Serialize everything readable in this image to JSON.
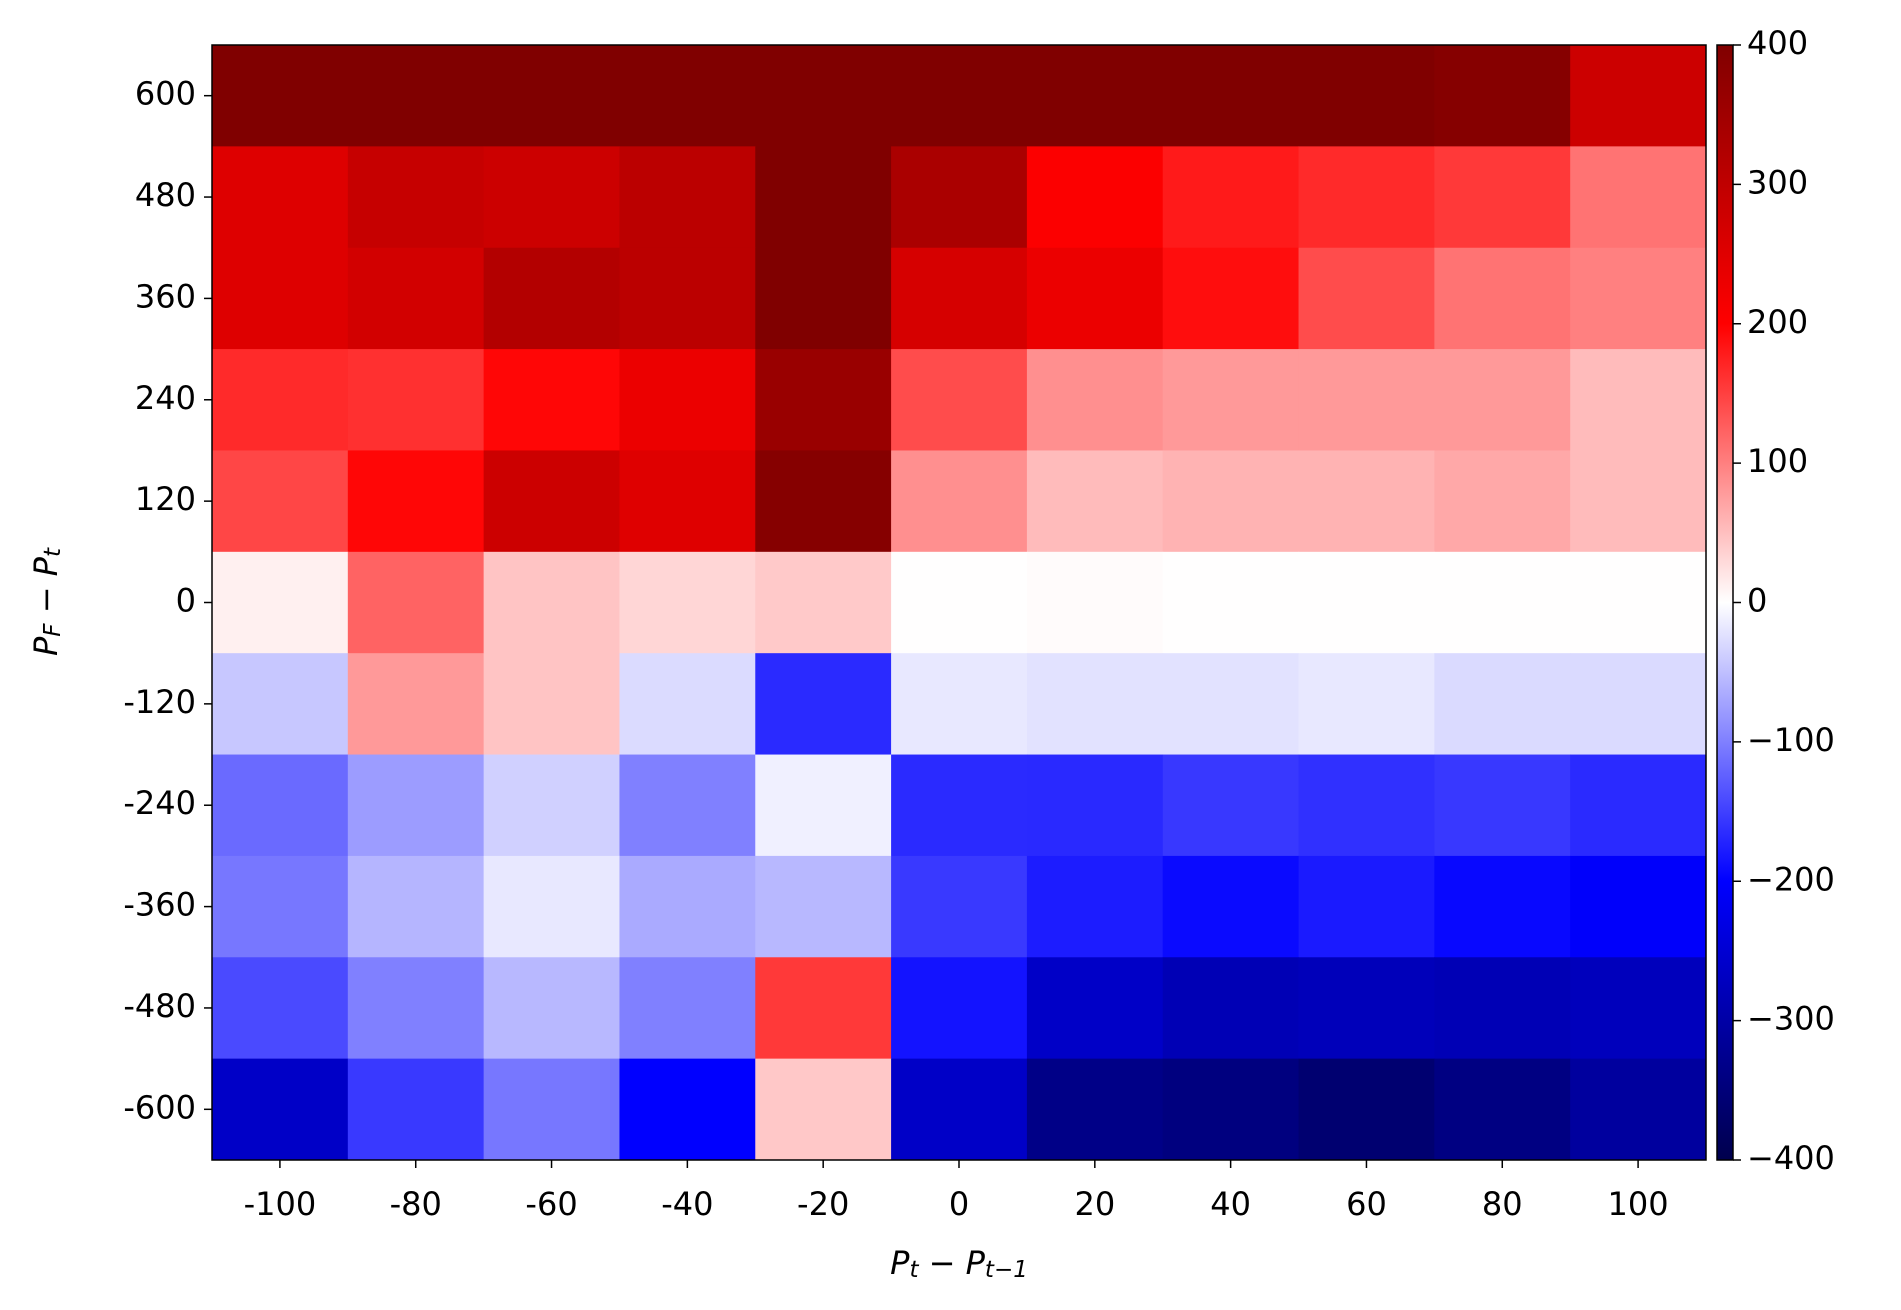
{
  "chart_data": {
    "type": "heatmap",
    "xlabel": "$P_t - P_{t-1}$",
    "ylabel": "$P_F - P_t$",
    "colormap": "seismic",
    "x": [
      -100,
      -80,
      -60,
      -40,
      -20,
      0,
      20,
      40,
      60,
      80,
      100
    ],
    "y": [
      600,
      480,
      360,
      240,
      120,
      0,
      -120,
      -240,
      -360,
      -480,
      -600
    ],
    "xlim": [
      -110,
      110
    ],
    "ylim": [
      -660,
      660
    ],
    "xticks": [
      -100,
      -80,
      -60,
      -40,
      -20,
      0,
      20,
      40,
      60,
      80,
      100
    ],
    "yticks": [
      -600,
      -480,
      -360,
      -240,
      -120,
      0,
      120,
      240,
      360,
      480,
      600
    ],
    "values": [
      [
        400,
        400,
        400,
        400,
        400,
        400,
        400,
        400,
        400,
        390,
        280
      ],
      [
        252,
        290,
        280,
        307,
        400,
        333,
        205,
        180,
        167,
        155,
        110
      ],
      [
        252,
        270,
        320,
        307,
        400,
        265,
        230,
        190,
        140,
        110,
        100
      ],
      [
        167,
        162,
        195,
        230,
        360,
        140,
        88,
        80,
        80,
        80,
        53
      ],
      [
        145,
        195,
        280,
        250,
        390,
        88,
        53,
        60,
        60,
        68,
        53
      ],
      [
        12,
        122,
        46,
        32,
        42,
        1,
        3,
        1,
        1,
        1,
        1
      ],
      [
        -44,
        80,
        46,
        -28,
        -167,
        -18,
        -23,
        -23,
        -18,
        -29,
        -29
      ],
      [
        -117,
        -78,
        -37,
        -100,
        -12,
        -167,
        -168,
        -156,
        -162,
        -156,
        -167
      ],
      [
        -107,
        -58,
        -18,
        -67,
        -56,
        -155,
        -178,
        -192,
        -180,
        -194,
        -205
      ],
      [
        -142,
        -100,
        -56,
        -100,
        155,
        -185,
        -263,
        -283,
        -277,
        -283,
        -275
      ],
      [
        -263,
        -155,
        -107,
        -200,
        43,
        -263,
        -334,
        -343,
        -360,
        -340,
        -309
      ]
    ],
    "zlim": [
      -400,
      400
    ],
    "zticks": [
      {
        "value": -400,
        "label": "−400"
      },
      {
        "value": -300,
        "label": "−300"
      },
      {
        "value": -200,
        "label": "−200"
      },
      {
        "value": -100,
        "label": "−100"
      },
      0,
      100,
      200,
      300,
      400
    ]
  }
}
